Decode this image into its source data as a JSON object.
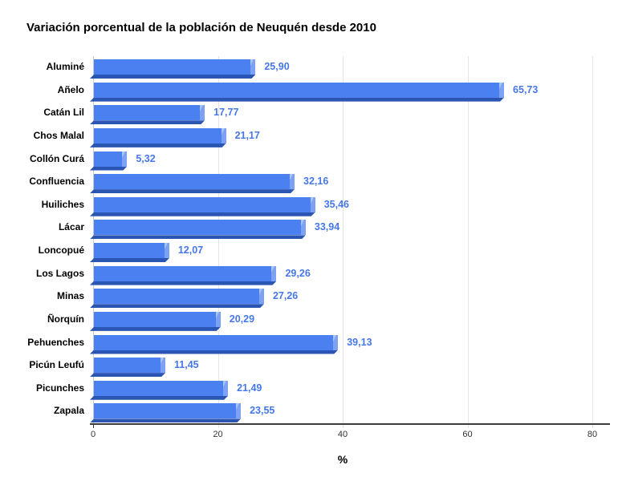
{
  "chart_data": {
    "type": "bar",
    "orientation": "horizontal",
    "title": "Variación porcentual de la población de Neuquén desde 2010",
    "xlabel": "%",
    "ylabel": "",
    "xlim": [
      0,
      80
    ],
    "x_ticks": [
      0,
      20,
      40,
      60,
      80
    ],
    "x_tick_labels": [
      "0",
      "20",
      "40",
      "60",
      "80"
    ],
    "grid": true,
    "legend": "none",
    "categories": [
      "Aluminé",
      "Añelo",
      "Catán Lil",
      "Chos Malal",
      "Collón Curá",
      "Confluencia",
      "Huiliches",
      "Lácar",
      "Loncopué",
      "Los Lagos",
      "Minas",
      "Ñorquín",
      "Pehuenches",
      "Picún Leufú",
      "Picunches",
      "Zapala"
    ],
    "values": [
      25.9,
      65.73,
      17.77,
      21.17,
      5.32,
      32.16,
      35.46,
      33.94,
      12.07,
      29.26,
      27.26,
      20.29,
      39.13,
      11.45,
      21.49,
      23.55
    ],
    "value_labels": [
      "25,90",
      "65,73",
      "17,77",
      "21,17",
      "5,32",
      "32,16",
      "35,46",
      "33,94",
      "12,07",
      "29,26",
      "27,26",
      "20,29",
      "39,13",
      "11,45",
      "21,49",
      "23,55"
    ],
    "colors": {
      "bar_face": "#4A80F0",
      "bar_cap": "#7DA2F4",
      "bar_cap_highlight": "#A9C4F8",
      "bar_bevel": "#2B55B2",
      "value_label": "#4677E8",
      "gridline": "#E4E4E4",
      "zero_line": "#C9C9C9",
      "axis_line": "#3C3C3C",
      "tick_label": "#333333",
      "category_label": "#000000",
      "background": "#FFFFFF"
    }
  }
}
